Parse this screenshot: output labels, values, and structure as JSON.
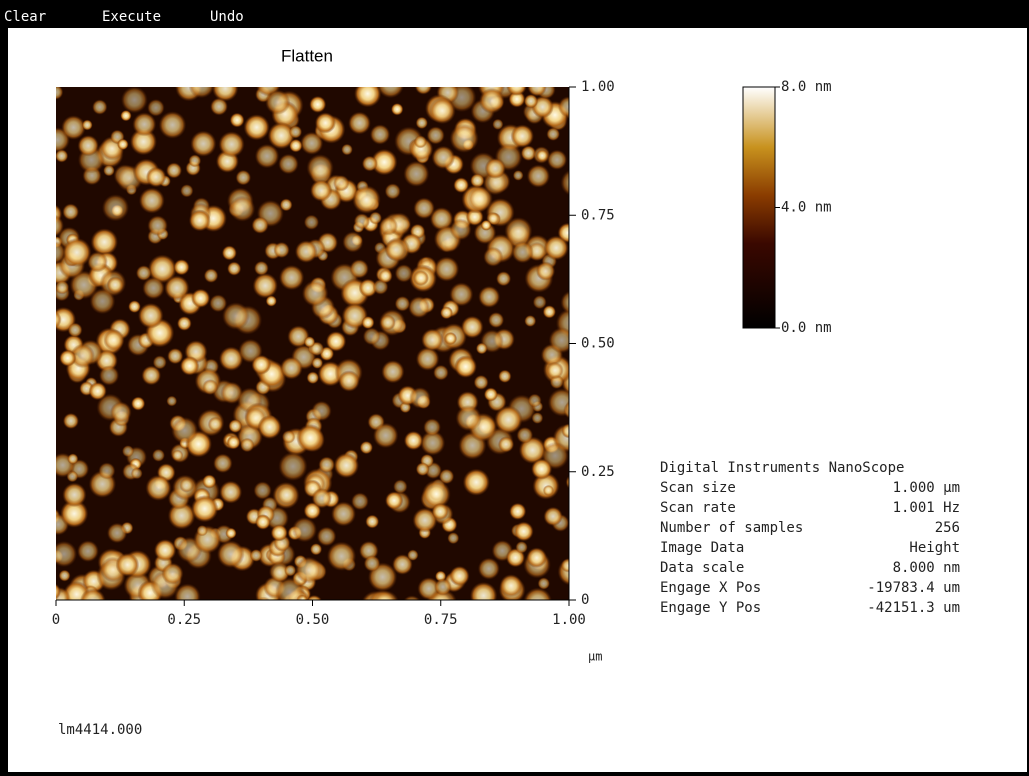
{
  "menu": {
    "items": [
      "Clear",
      "Execute",
      "Undo"
    ]
  },
  "image": {
    "title": "Flatten",
    "xticks": [
      0,
      {
        "value": 0.25,
        "label": "0.25"
      },
      {
        "value": 0.5,
        "label": "0.50"
      },
      {
        "value": 0.75,
        "label": "0.75"
      },
      {
        "value": 1,
        "label": "1.00"
      }
    ],
    "yticks": [
      0,
      {
        "value": 0.25,
        "label": "0.25"
      },
      {
        "value": 0.5,
        "label": "0.50"
      },
      {
        "value": 0.75,
        "label": "0.75"
      },
      {
        "value": 1,
        "label": "1.00"
      }
    ],
    "lim": [
      0,
      1
    ],
    "unit": "µm"
  },
  "colorbar": {
    "lim": [
      0,
      8
    ],
    "ticks": [
      {
        "value": 8,
        "label": "8.0 nm"
      },
      {
        "value": 4,
        "label": "4.0 nm"
      },
      {
        "value": 0,
        "label": "0.0 nm"
      }
    ]
  },
  "info": {
    "heading": "Digital Instruments NanoScope",
    "rows": [
      [
        "Scan size",
        "1.000 µm"
      ],
      [
        "Scan rate",
        "1.001 Hz"
      ],
      [
        "Number of samples",
        "256"
      ],
      [
        "Image Data",
        "Height"
      ],
      [
        "Data scale",
        "8.000 nm"
      ],
      [
        "Engage X Pos",
        "-19783.4 um"
      ],
      [
        "Engage Y Pos",
        "-42151.3 um"
      ]
    ]
  },
  "filename": "lm4414.000"
}
